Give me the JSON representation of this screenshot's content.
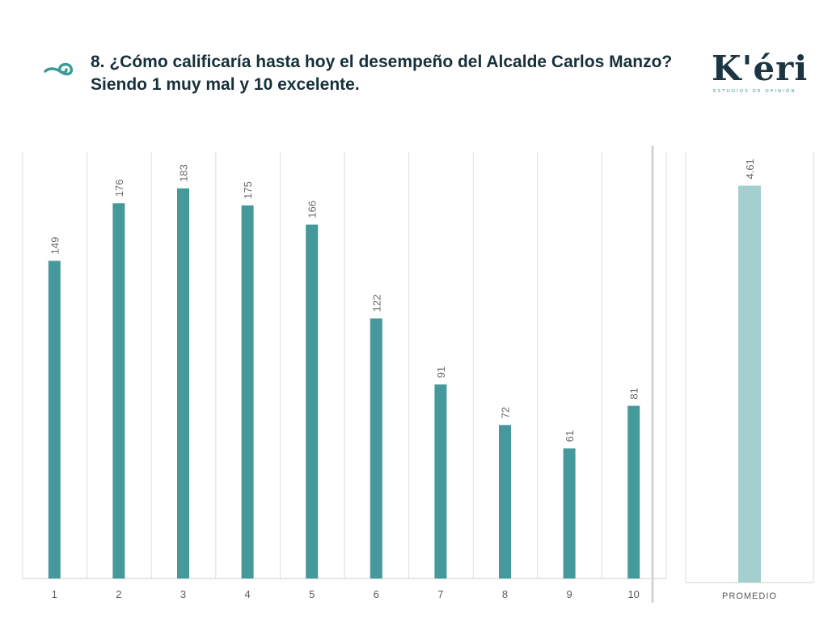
{
  "header": {
    "title": "8. ¿Cómo calificaría hasta hoy el desempeño del Alcalde Carlos Manzo? Siendo 1 muy mal y 10 excelente.",
    "logo_text": "K'éri",
    "logo_subtitle": "ESTUDIOS DE OPINIÓN",
    "icon": "spiral-icon"
  },
  "colors": {
    "title": "#17303a",
    "bar": "#46999a",
    "avg_bar": "#a5cecf",
    "logo": "#1b3542",
    "accent": "#3a9a97"
  },
  "chart_data": [
    {
      "type": "bar",
      "categories": [
        "1",
        "2",
        "3",
        "4",
        "5",
        "6",
        "7",
        "8",
        "9",
        "10"
      ],
      "values": [
        149,
        176,
        183,
        175,
        166,
        122,
        91,
        72,
        61,
        81
      ],
      "ylim": [
        0,
        200
      ],
      "grid": true,
      "data_labels": true
    },
    {
      "type": "bar",
      "categories": [
        "PROMEDIO"
      ],
      "values": [
        4.61
      ],
      "ylim": [
        0,
        5
      ],
      "data_labels": true
    }
  ]
}
